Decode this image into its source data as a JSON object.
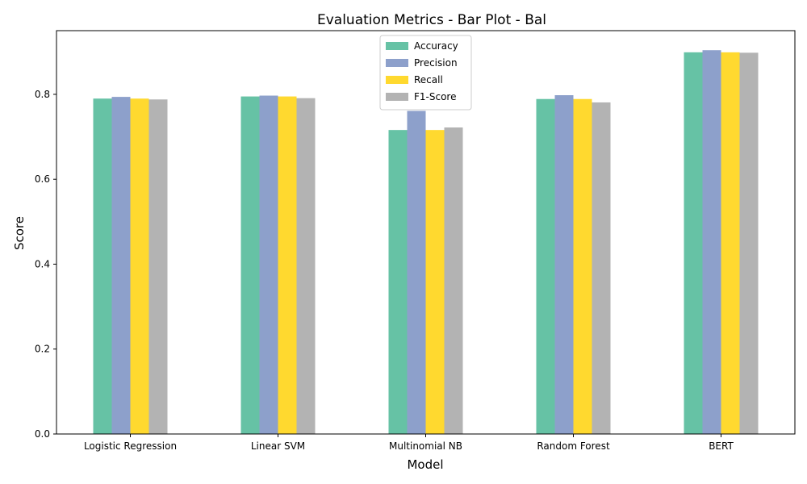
{
  "chart_data": {
    "type": "bar",
    "title": "Evaluation Metrics - Bar Plot - Bal",
    "xlabel": "Model",
    "ylabel": "Score",
    "ylim": [
      0,
      0.95
    ],
    "yticks": [
      "0.0",
      "0.2",
      "0.4",
      "0.6",
      "0.8"
    ],
    "ytick_values": [
      0,
      0.2,
      0.4,
      0.6,
      0.8
    ],
    "grid": false,
    "legend_position": "top-center",
    "categories": [
      "Logistic Regression",
      "Linear SVM",
      "Multinomial NB",
      "Random Forest",
      "BERT"
    ],
    "series": [
      {
        "name": "Accuracy",
        "color": "#66c2a5",
        "values": [
          0.79,
          0.795,
          0.716,
          0.789,
          0.899
        ]
      },
      {
        "name": "Precision",
        "color": "#8da0cb",
        "values": [
          0.794,
          0.797,
          0.761,
          0.798,
          0.904
        ]
      },
      {
        "name": "Recall",
        "color": "#ffd92f",
        "values": [
          0.79,
          0.795,
          0.716,
          0.789,
          0.899
        ]
      },
      {
        "name": "F1-Score",
        "color": "#b3b3b3",
        "values": [
          0.788,
          0.791,
          0.722,
          0.781,
          0.898
        ]
      }
    ]
  }
}
